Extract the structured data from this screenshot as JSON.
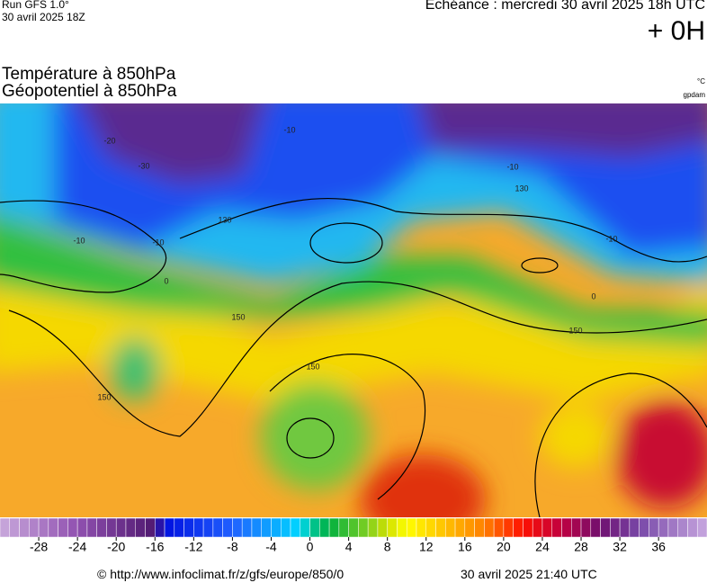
{
  "header": {
    "run": "Run GFS 1.0°",
    "run_date": "30 avril 2025 18Z",
    "echeance": "Echéance : mercredi 30 avril 2025 18h UTC",
    "lead": "+ 0H"
  },
  "titles": [
    "Température à 850hPa",
    "Géopotentiel à 850hPa"
  ],
  "units": [
    "°C",
    "gpdam"
  ],
  "map": {
    "contour_labels": [
      "-20",
      "-30",
      "-10",
      "-10",
      "-10",
      "-10",
      "-10",
      "130",
      "130",
      "150",
      "150",
      "150",
      "150",
      "0",
      "0"
    ]
  },
  "colorbar": {
    "range": [
      -32,
      41
    ],
    "ticks": [
      -28,
      -24,
      -20,
      -16,
      -12,
      -8,
      -4,
      0,
      4,
      8,
      12,
      16,
      20,
      24,
      28,
      32,
      36
    ]
  },
  "footer": {
    "url": "© http://www.infoclimat.fr/z/gfs/europe/850/0",
    "timestamp": "30 avril 2025 21:40 UTC"
  }
}
